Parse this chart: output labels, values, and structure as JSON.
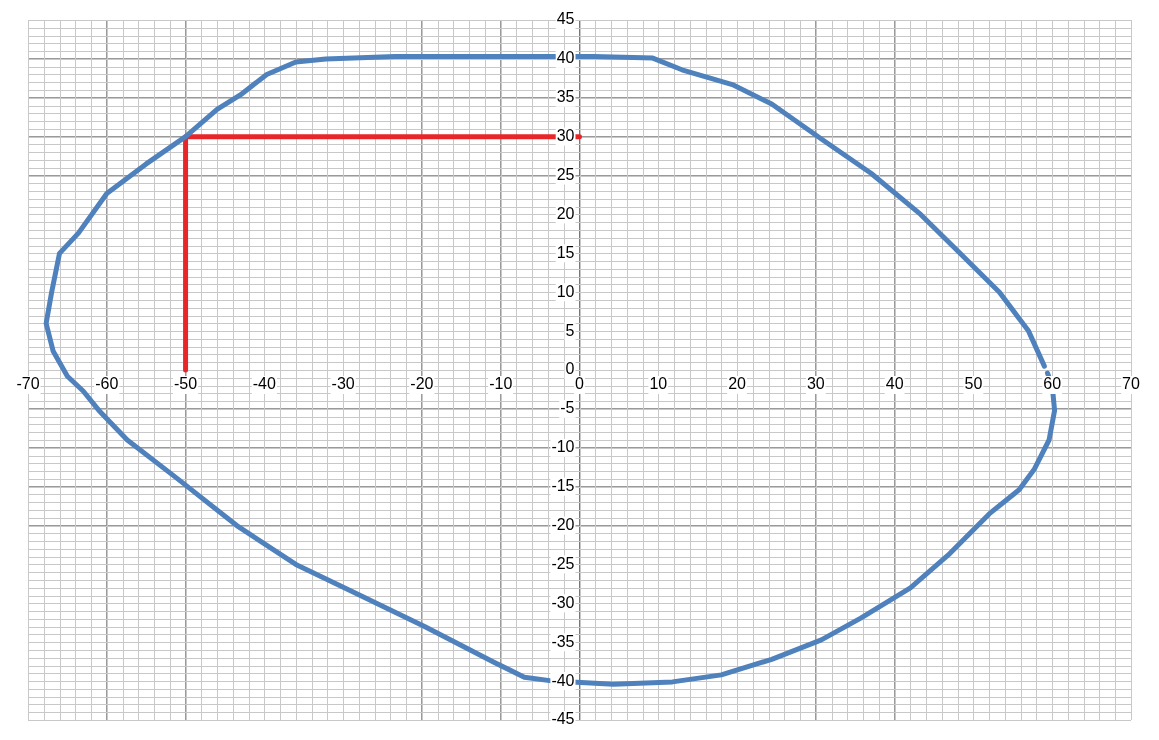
{
  "chart_data": {
    "type": "line",
    "xlim": [
      -70,
      70
    ],
    "ylim": [
      -45,
      45
    ],
    "xticks": [
      -70,
      -60,
      -50,
      -40,
      -30,
      -20,
      -10,
      0,
      10,
      20,
      30,
      40,
      50,
      60,
      70
    ],
    "yticks": [
      -45,
      -40,
      -35,
      -30,
      -25,
      -20,
      -15,
      -10,
      -5,
      0,
      5,
      10,
      15,
      20,
      25,
      30,
      35,
      40,
      45
    ],
    "grid": true,
    "marker": "none",
    "line_style": "solid",
    "legend": false,
    "series": [
      {
        "color": "#4f81bd",
        "x": [
          59,
          57,
          53.3,
          48.3,
          43.3,
          37,
          30.7,
          24.4,
          19.4,
          13,
          9.3,
          1.8,
          -10.8,
          -23.4,
          -32.2,
          -36,
          -39.7,
          -43,
          -46,
          -50,
          -55,
          -60,
          -63.6,
          -66,
          -67,
          -67.7,
          -66.8,
          -65,
          -63,
          -61,
          -57.4,
          -51,
          -43.5,
          -36,
          -28.4,
          -19.6,
          -10.8,
          -7,
          -3.3,
          4.3,
          11.8,
          18,
          24.4,
          30.7,
          35.7,
          42,
          47,
          52,
          55.8,
          57.7,
          59.6,
          60.3,
          60,
          59.4
        ],
        "values": [
          0.5,
          5,
          10,
          15,
          20,
          25.3,
          29.7,
          34.2,
          36.7,
          38.6,
          40.1,
          40.3,
          40.3,
          40.3,
          40,
          39.6,
          38,
          35.4,
          33.5,
          30,
          26.5,
          22.7,
          17.6,
          15,
          10,
          6,
          2.4,
          -0.8,
          -2.7,
          -5.2,
          -9,
          -14,
          -20,
          -25,
          -28.7,
          -33,
          -37.6,
          -39.5,
          -40,
          -40.4,
          -40.1,
          -39.2,
          -37.2,
          -34.7,
          -31.9,
          -28,
          -23.6,
          -18.5,
          -15.4,
          -12.8,
          -9,
          -5.2,
          -2,
          -0.4
        ]
      },
      {
        "color": "#e8262a",
        "x": [
          -50,
          -50,
          0
        ],
        "values": [
          0,
          30,
          30
        ]
      }
    ]
  }
}
